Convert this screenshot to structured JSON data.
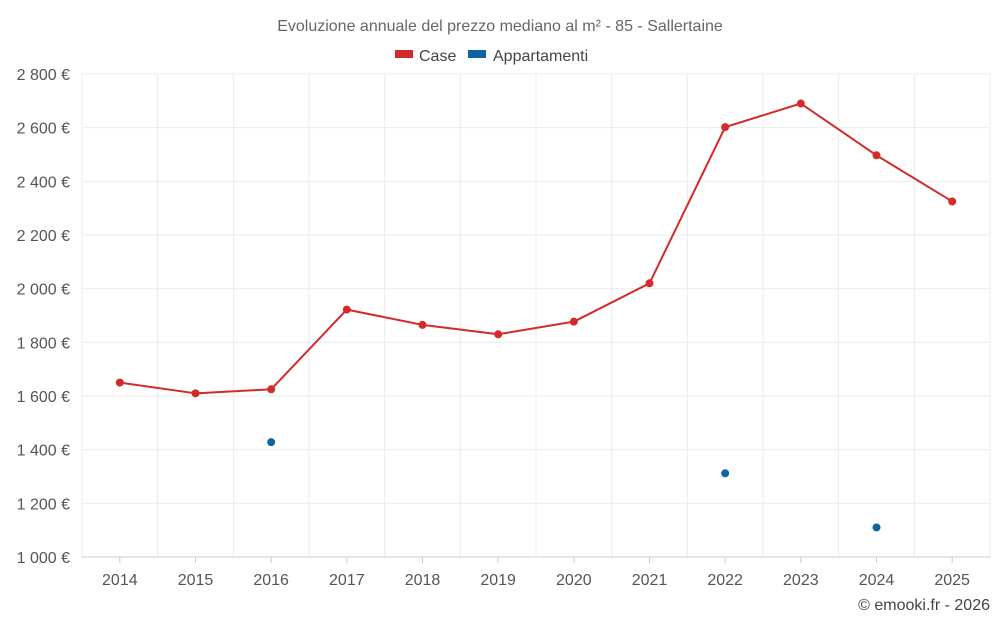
{
  "chart_data": {
    "type": "line",
    "title": "Evoluzione annuale del prezzo mediano al m² - 85 - Sallertaine",
    "categories": [
      "2014",
      "2015",
      "2016",
      "2017",
      "2018",
      "2019",
      "2020",
      "2021",
      "2022",
      "2023",
      "2024",
      "2025"
    ],
    "ylim": [
      1000,
      2800
    ],
    "yticks": [
      1000,
      1200,
      1400,
      1600,
      1800,
      2000,
      2200,
      2400,
      2600,
      2800
    ],
    "ytick_labels": [
      "1 000 €",
      "1 200 €",
      "1 400 €",
      "1 600 €",
      "1 800 €",
      "2 000 €",
      "2 200 €",
      "2 400 €",
      "2 600 €",
      "2 800 €"
    ],
    "grid": true,
    "legend_position": "top-center",
    "series": [
      {
        "name": "Case",
        "color": "#d32a2a",
        "values": [
          1650,
          1610,
          1625,
          1922,
          1865,
          1830,
          1877,
          2020,
          2602,
          2690,
          2497,
          2325
        ]
      },
      {
        "name": "Appartamenti",
        "color": "#0e64a0",
        "values": [
          null,
          null,
          1428,
          null,
          null,
          null,
          null,
          null,
          1312,
          null,
          1110,
          null
        ]
      }
    ]
  },
  "credit": "© emooki.fr - 2026"
}
